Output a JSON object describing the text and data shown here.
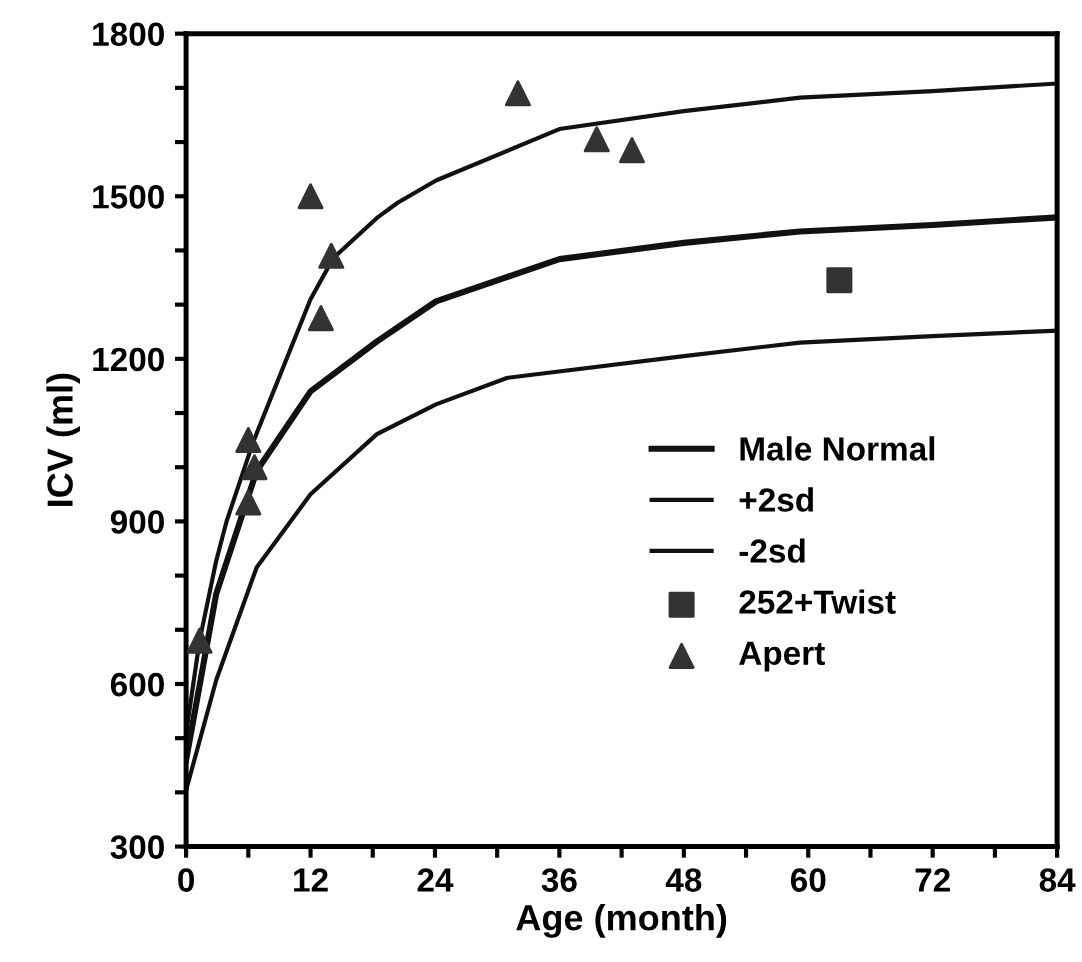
{
  "chart_data": {
    "type": "line",
    "xlabel": "Age (month)",
    "ylabel": "ICV (ml)",
    "xlim": [
      0,
      84
    ],
    "ylim": [
      300,
      1800
    ],
    "xticks": [
      0,
      {
        "value": 6,
        "label": null
      },
      12,
      {
        "value": 18,
        "label": null
      },
      24,
      {
        "value": 30,
        "label": null
      },
      36,
      {
        "value": 42,
        "label": null
      },
      48,
      {
        "value": 54,
        "label": null
      },
      60,
      {
        "value": 66,
        "label": null
      },
      72,
      {
        "value": 78,
        "label": null
      },
      84
    ],
    "yticks": [
      300,
      {
        "value": 400,
        "label": null
      },
      {
        "value": 500,
        "label": null
      },
      600,
      {
        "value": 700,
        "label": null
      },
      {
        "value": 800,
        "label": null
      },
      900,
      {
        "value": 1000,
        "label": null
      },
      {
        "value": 1100,
        "label": null
      },
      1200,
      {
        "value": 1300,
        "label": null
      },
      {
        "value": 1400,
        "label": null
      },
      1500,
      {
        "value": 1600,
        "label": null
      },
      {
        "value": 1700,
        "label": null
      },
      1800
    ],
    "grid": false,
    "legend": "right",
    "series": [
      {
        "name": "Male Normal",
        "color": "#111111",
        "marker": "none",
        "line_style": "solid",
        "x": [
          0,
          2.9,
          6.8,
          12,
          18.4,
          24.1,
          36,
          48,
          59.2,
          72,
          84
        ],
        "values": [
          460,
          766,
          993,
          1140,
          1232,
          1306,
          1384,
          1414,
          1435,
          1447,
          1461
        ]
      },
      {
        "name": "+2sd",
        "color": "#111111",
        "marker": "none",
        "line_style": "solid",
        "x": [
          0,
          1.3,
          2.9,
          3.9,
          6.5,
          12,
          14.2,
          18.4,
          20.4,
          24.1,
          36,
          48,
          59.2,
          72,
          84
        ],
        "values": [
          509,
          680,
          827,
          900,
          1048,
          1310,
          1386,
          1460,
          1488,
          1529,
          1624,
          1657,
          1682,
          1694,
          1708
        ]
      },
      {
        "name": "-2sd",
        "color": "#111111",
        "marker": "none",
        "line_style": "solid",
        "x": [
          0,
          2.9,
          6.8,
          12,
          18.4,
          24.1,
          31,
          48,
          59.2,
          72,
          84
        ],
        "values": [
          404,
          607,
          815,
          950,
          1061,
          1116,
          1165,
          1205,
          1230,
          1242,
          1252
        ]
      },
      {
        "name": "252+Twist",
        "type": "scatter",
        "color": "#333333",
        "marker": "square",
        "x": [
          63
        ],
        "values": [
          1345
        ]
      },
      {
        "name": "Apert",
        "type": "scatter",
        "color": "#333333",
        "marker": "triangle",
        "x": [
          1.3,
          6,
          6.6,
          6,
          12,
          13,
          14,
          32,
          39.6,
          43
        ],
        "values": [
          680,
          1050,
          1000,
          935,
          1500,
          1275,
          1390,
          1690,
          1605,
          1585
        ]
      }
    ]
  }
}
